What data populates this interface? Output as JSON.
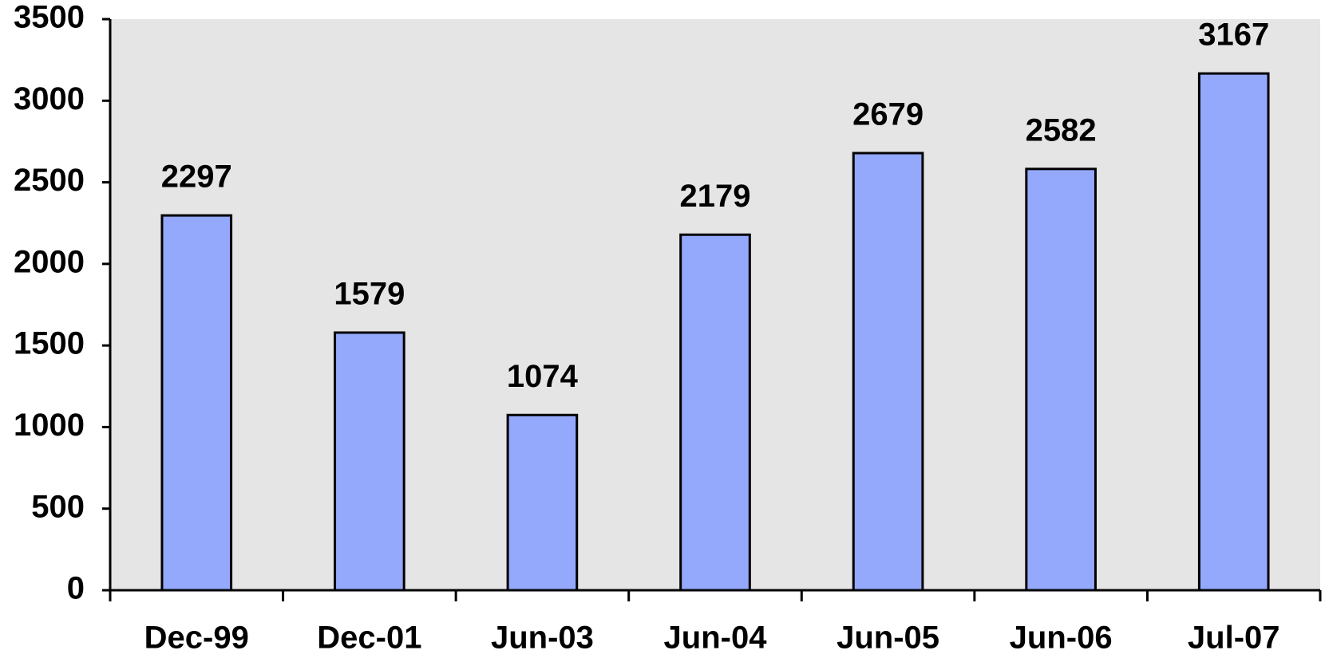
{
  "chart_data": {
    "type": "bar",
    "categories": [
      "Dec-99",
      "Dec-01",
      "Jun-03",
      "Jun-04",
      "Jun-05",
      "Jun-06",
      "Jul-07"
    ],
    "values": [
      2297,
      1579,
      1074,
      2179,
      2679,
      2582,
      3167
    ],
    "color": "#94a8fc",
    "plot_background": "#e5e5e5",
    "ylim": [
      0,
      3500
    ],
    "yticks": [
      0,
      500,
      1000,
      1500,
      2000,
      2500,
      3000,
      3500
    ],
    "grid": false,
    "data_labels": true
  }
}
